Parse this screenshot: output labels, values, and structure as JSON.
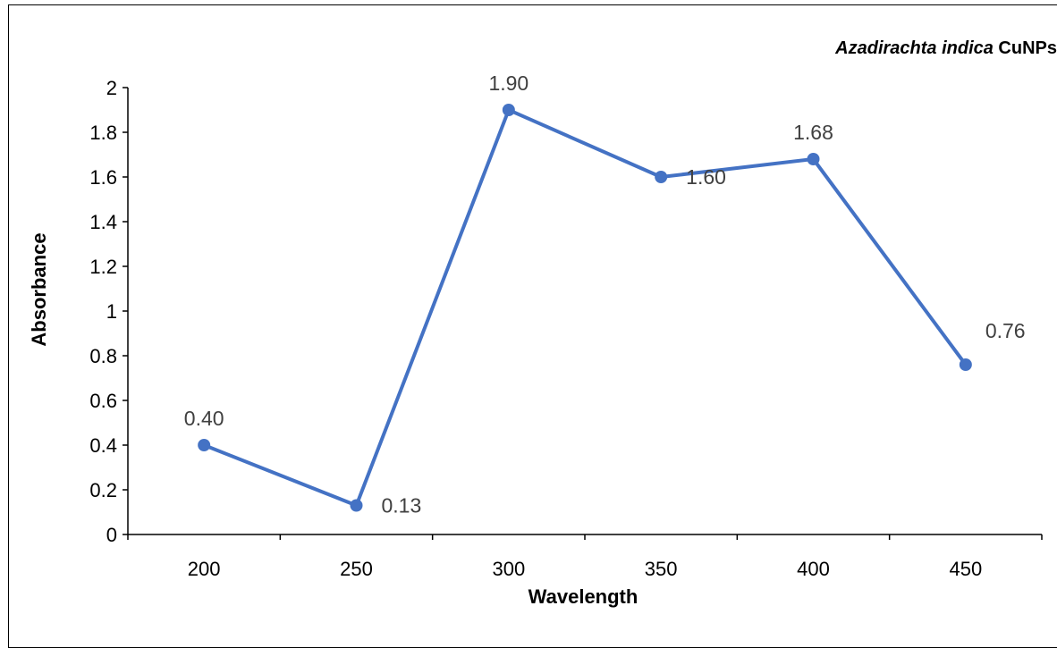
{
  "chart_data": {
    "type": "line",
    "title_italic": "Azadirachta indica",
    "title_plain": " CuNPs",
    "xlabel": "Wavelength",
    "ylabel": "Absorbance",
    "categories": [
      "200",
      "250",
      "300",
      "350",
      "400",
      "450"
    ],
    "x": [
      200,
      250,
      300,
      350,
      400,
      450
    ],
    "series": [
      {
        "values": [
          0.4,
          0.13,
          1.9,
          1.6,
          1.68,
          0.76
        ],
        "data_labels": [
          "0.40",
          "0.13",
          "1.90",
          "1.60",
          "1.68",
          "0.76"
        ],
        "color": "#4472C4"
      }
    ],
    "ylim": [
      0,
      2
    ],
    "yticks": [
      "0",
      "0.2",
      "0.4",
      "0.6",
      "0.8",
      "1",
      "1.2",
      "1.4",
      "1.6",
      "1.8",
      "2"
    ],
    "grid": false,
    "legend": "none"
  }
}
